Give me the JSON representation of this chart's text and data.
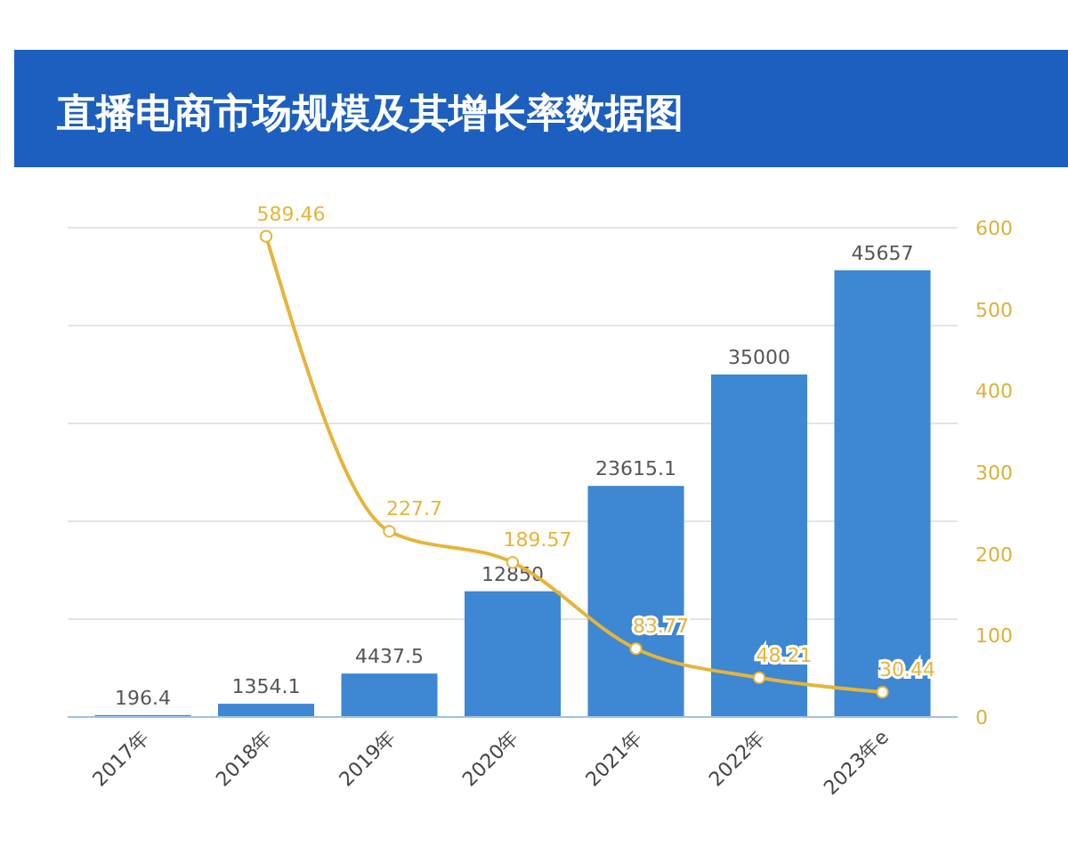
{
  "chart_data": {
    "type": "bar",
    "title": "直播电商市场规模及其增长率数据图",
    "categories": [
      "2017年",
      "2018年",
      "2019年",
      "2020年",
      "2021年",
      "2022年",
      "2023年e"
    ],
    "series": [
      {
        "color": "#3d87d3",
        "values": [
          196.4,
          1354.1,
          4437.5,
          12850,
          23615.1,
          35000,
          45657
        ]
      },
      {
        "type": "line",
        "axis": "y2",
        "color": "#e6b43a",
        "values": [
          null,
          589.46,
          227.7,
          189.57,
          83.77,
          48.21,
          30.44
        ]
      }
    ],
    "ylim": [
      0,
      50000
    ],
    "yticks": [
      {
        "value": 0,
        "label": null
      },
      {
        "value": 10000,
        "label": null
      },
      {
        "value": 20000,
        "label": null
      },
      {
        "value": 30000,
        "label": null
      },
      {
        "value": 40000,
        "label": null
      },
      {
        "value": 50000,
        "label": null
      }
    ],
    "y2lim": [
      0,
      600
    ],
    "y2ticks": [
      0,
      100,
      200,
      300,
      400,
      500,
      600
    ],
    "grid": "y",
    "data_labels": true,
    "marker": "circle"
  }
}
